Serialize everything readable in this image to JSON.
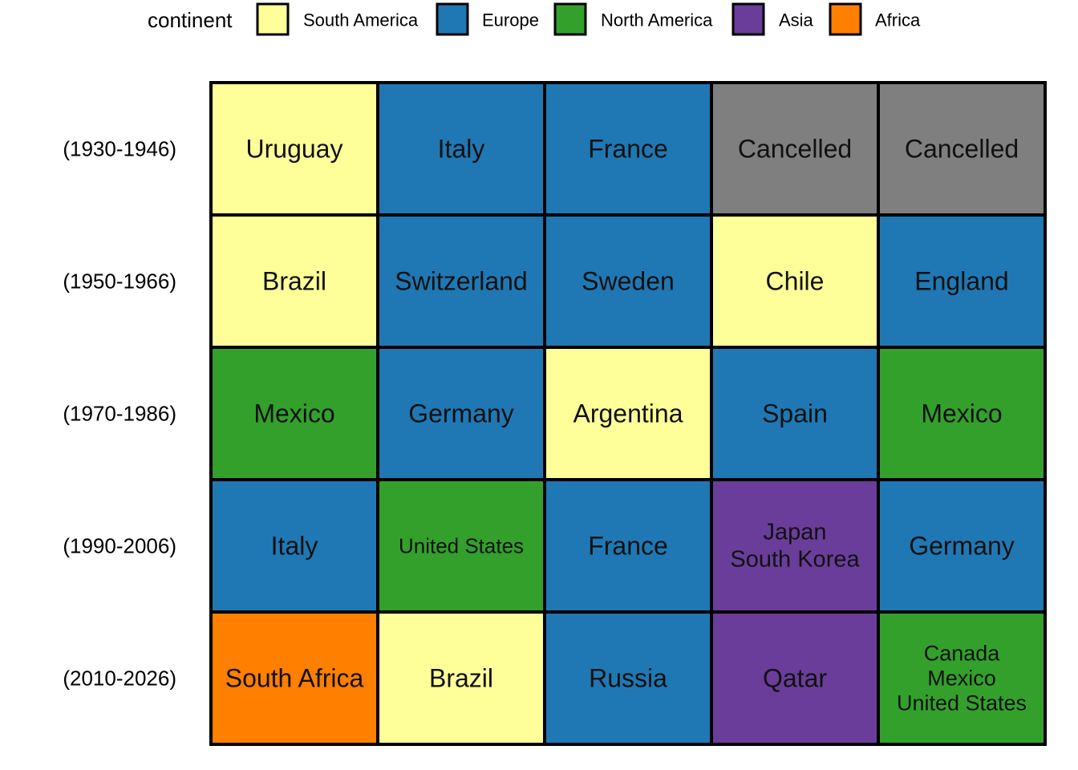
{
  "chart_data": {
    "type": "heatmap",
    "legend": {
      "title": "continent",
      "position": "top",
      "items": [
        {
          "label": "South America",
          "color": "#FFFF99"
        },
        {
          "label": "Europe",
          "color": "#1F78B4"
        },
        {
          "label": "North America",
          "color": "#33A02C"
        },
        {
          "label": "Asia",
          "color": "#6A3D9A"
        },
        {
          "label": "Africa",
          "color": "#FF7F00"
        }
      ]
    },
    "cancelled_color": "#7F7F7F",
    "rows": [
      {
        "label": "(1930-1946)",
        "cells": [
          {
            "text": "Uruguay",
            "continent": "South America"
          },
          {
            "text": "Italy",
            "continent": "Europe"
          },
          {
            "text": "France",
            "continent": "Europe"
          },
          {
            "text": "Cancelled",
            "continent": null
          },
          {
            "text": "Cancelled",
            "continent": null
          }
        ]
      },
      {
        "label": "(1950-1966)",
        "cells": [
          {
            "text": "Brazil",
            "continent": "South America"
          },
          {
            "text": "Switzerland",
            "continent": "Europe"
          },
          {
            "text": "Sweden",
            "continent": "Europe"
          },
          {
            "text": "Chile",
            "continent": "South America"
          },
          {
            "text": "England",
            "continent": "Europe"
          }
        ]
      },
      {
        "label": "(1970-1986)",
        "cells": [
          {
            "text": "Mexico",
            "continent": "North America"
          },
          {
            "text": "Germany",
            "continent": "Europe"
          },
          {
            "text": "Argentina",
            "continent": "South America"
          },
          {
            "text": "Spain",
            "continent": "Europe"
          },
          {
            "text": "Mexico",
            "continent": "North America"
          }
        ]
      },
      {
        "label": "(1990-2006)",
        "cells": [
          {
            "text": "Italy",
            "continent": "Europe"
          },
          {
            "text": "United States",
            "continent": "North America"
          },
          {
            "text": "France",
            "continent": "Europe"
          },
          {
            "text": "Japan\nSouth Korea",
            "continent": "Asia"
          },
          {
            "text": "Germany",
            "continent": "Europe"
          }
        ]
      },
      {
        "label": "(2010-2026)",
        "cells": [
          {
            "text": "South Africa",
            "continent": "Africa"
          },
          {
            "text": "Brazil",
            "continent": "South America"
          },
          {
            "text": "Russia",
            "continent": "Europe"
          },
          {
            "text": "Qatar",
            "continent": "Asia"
          },
          {
            "text": "Canada\nMexico\nUnited States",
            "continent": "North America"
          }
        ]
      }
    ]
  }
}
